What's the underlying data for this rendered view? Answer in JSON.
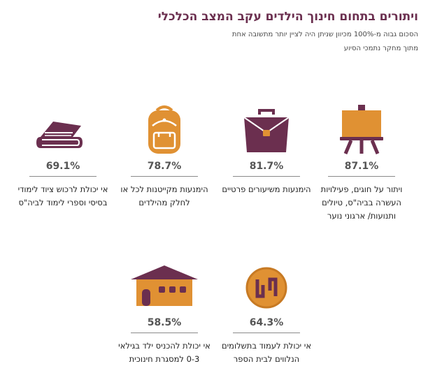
{
  "header": {
    "title": "ויתורים בתחום חינוך הילדים עקב המצב הכלכלי",
    "subtitle": "הסכום גבוה מ-100% מכיוון שניתן היה לציין יותר מתשובה אחת",
    "source": "מתוך מחקר נתמכי הסיוע"
  },
  "colors": {
    "accent_purple": "#6b2f4f",
    "accent_orange": "#e09133"
  },
  "items": [
    {
      "icon": "easel-icon",
      "percent": "87.1%",
      "text": "ויתור על חוגים, פעילויות העשרה בביה\"ס, טיולים ותנועות/ ארגוני נוער"
    },
    {
      "icon": "briefcase-icon",
      "percent": "81.7%",
      "text": "הימנעות משיעורים פרטיים"
    },
    {
      "icon": "backpack-icon",
      "percent": "78.7%",
      "text": "הימנעות מקייטנות לכל או לחלק מהילדים"
    },
    {
      "icon": "books-icon",
      "percent": "69.1%",
      "text": "אי יכולת לרכוש ציוד לימודי בסיסי וספרי לימוד לביה\"ס"
    },
    {
      "icon": "shekel-coin-icon",
      "percent": "64.3%",
      "text": "אי יכולת לעמוד בתשלומים הנלווים לבית הספר"
    },
    {
      "icon": "kindergarten-icon",
      "percent": "58.5%",
      "text": "אי יכולת להכניס ילד בגילאי 0-3 למסגרת חינוכית"
    }
  ]
}
